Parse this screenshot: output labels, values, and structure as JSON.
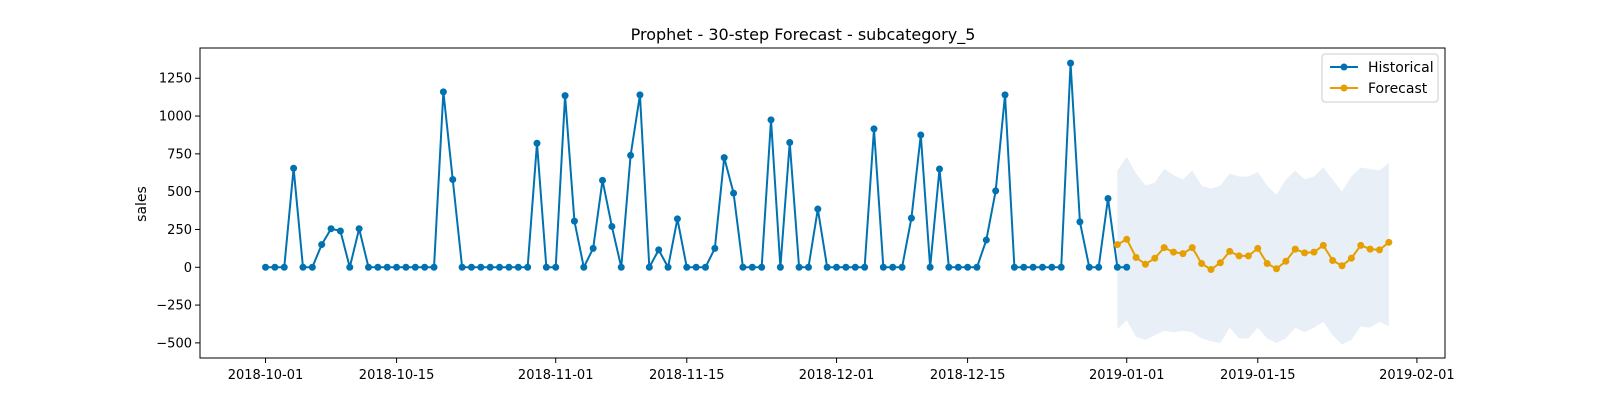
{
  "chart_data": {
    "type": "line",
    "title": "Prophet - 30-step Forecast - subcategory_5",
    "xlabel": "",
    "ylabel": "sales",
    "ylim": [
      -600,
      1450
    ],
    "yticks": [
      -500,
      -250,
      0,
      250,
      500,
      750,
      1000,
      1250
    ],
    "xlim_days": [
      -7,
      126
    ],
    "xticks": [
      {
        "day": 0,
        "label": "2018-10-01"
      },
      {
        "day": 14,
        "label": "2018-10-15"
      },
      {
        "day": 31,
        "label": "2018-11-01"
      },
      {
        "day": 45,
        "label": "2018-11-15"
      },
      {
        "day": 61,
        "label": "2018-12-01"
      },
      {
        "day": 75,
        "label": "2018-12-15"
      },
      {
        "day": 92,
        "label": "2019-01-01"
      },
      {
        "day": 106,
        "label": "2019-01-15"
      },
      {
        "day": 123,
        "label": "2019-02-01"
      }
    ],
    "legend": {
      "position": "top-right",
      "entries": [
        "Historical",
        "Forecast"
      ]
    },
    "colors": {
      "historical": "#0072b2",
      "forecast": "#e69f00",
      "interval": "#dce7f3"
    },
    "series": [
      {
        "name": "Historical",
        "start_day": 0,
        "values": [
          0,
          0,
          0,
          655,
          0,
          0,
          150,
          255,
          240,
          0,
          255,
          0,
          0,
          0,
          0,
          0,
          0,
          0,
          0,
          1160,
          580,
          0,
          0,
          0,
          0,
          0,
          0,
          0,
          0,
          820,
          0,
          0,
          1135,
          305,
          0,
          125,
          575,
          270,
          0,
          740,
          1140,
          0,
          115,
          0,
          320,
          0,
          0,
          0,
          125,
          725,
          490,
          0,
          0,
          0,
          975,
          0,
          825,
          0,
          0,
          385,
          0,
          0,
          0,
          0,
          0,
          915,
          0,
          0,
          0,
          325,
          875,
          0,
          650,
          0,
          0,
          0,
          0,
          180,
          505,
          1140,
          0,
          0,
          0,
          0,
          0,
          0,
          1350,
          300,
          0,
          0,
          455,
          0,
          0
        ]
      },
      {
        "name": "Forecast",
        "start_day": 91,
        "values": [
          150,
          185,
          65,
          20,
          60,
          130,
          100,
          90,
          130,
          25,
          -15,
          30,
          105,
          75,
          75,
          125,
          25,
          -10,
          40,
          120,
          95,
          100,
          145,
          45,
          10,
          60,
          145,
          120,
          115,
          165
        ]
      }
    ],
    "interval": {
      "name": "Uncertainty interval",
      "start_day": 91,
      "upper": [
        640,
        730,
        620,
        540,
        560,
        650,
        610,
        580,
        640,
        540,
        520,
        540,
        620,
        600,
        600,
        630,
        540,
        480,
        580,
        640,
        580,
        600,
        660,
        580,
        500,
        600,
        660,
        650,
        640,
        690
      ],
      "lower": [
        -410,
        -350,
        -460,
        -480,
        -450,
        -420,
        -430,
        -420,
        -430,
        -470,
        -490,
        -500,
        -400,
        -470,
        -470,
        -400,
        -470,
        -500,
        -470,
        -400,
        -430,
        -400,
        -360,
        -450,
        -510,
        -480,
        -390,
        -400,
        -360,
        -390
      ]
    }
  }
}
